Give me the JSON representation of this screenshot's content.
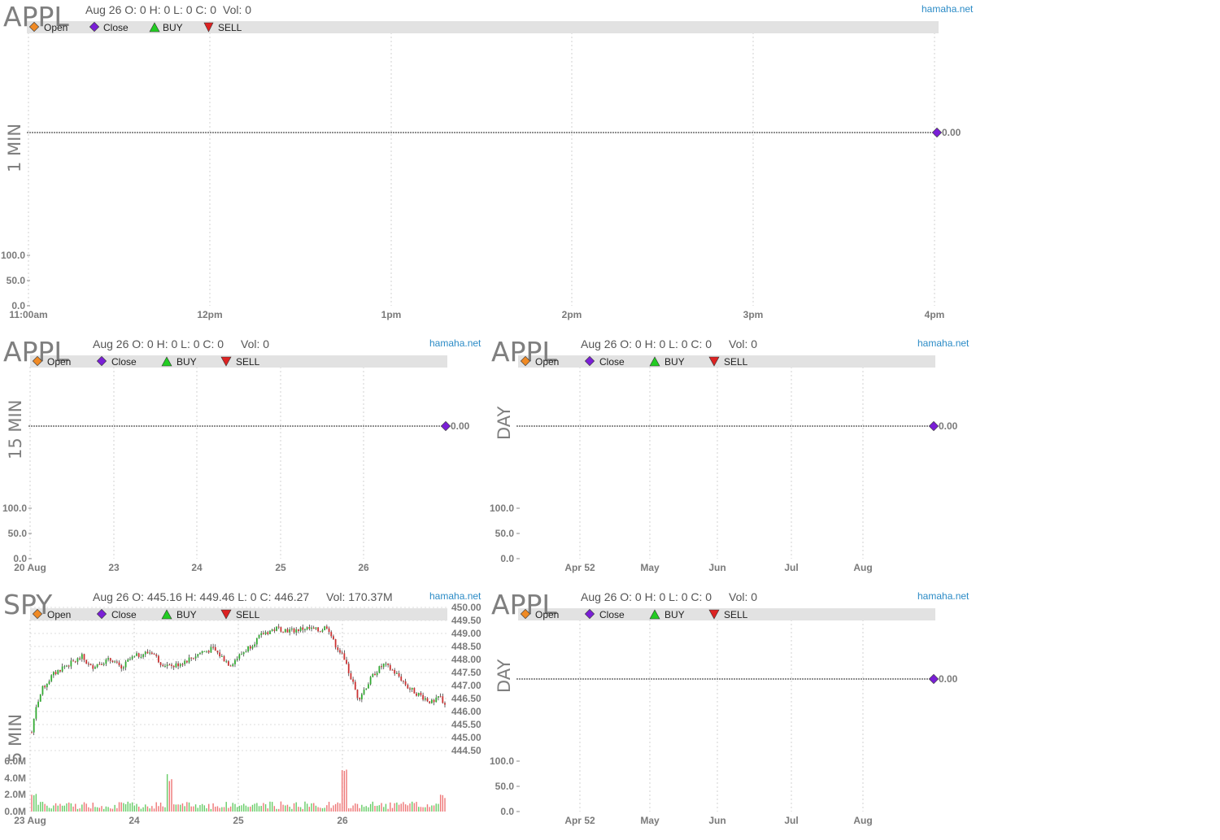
{
  "colors": {
    "open": "#f08a24",
    "close": "#7a1fd6",
    "buy": "#22cc22",
    "sell": "#dd2222",
    "up_candle": "#33aa33",
    "down_candle": "#cc3333",
    "brand": "#2b8bc6",
    "legend_band": "#e2e2e2",
    "grid": "#cccccc"
  },
  "legend": {
    "open": "Open",
    "close": "Close",
    "buy": "BUY",
    "sell": "SELL"
  },
  "panels": [
    {
      "id": "p1",
      "ticker": "APPL",
      "period": "1 MIN",
      "info": "Aug 26 O: 0 H: 0 L: 0 C: 0",
      "vol": "Vol: 0",
      "brand": "hamaha.net",
      "last_value": "0.00"
    },
    {
      "id": "p2",
      "ticker": "APPL",
      "period": "15 MIN",
      "info": "Aug 26 O: 0 H: 0 L: 0 C: 0",
      "vol": "Vol: 0",
      "brand": "hamaha.net",
      "last_value": "0.00"
    },
    {
      "id": "p3",
      "ticker": "APPL",
      "period": "DAY",
      "info": "Aug 26 O: 0 H: 0 L: 0 C: 0",
      "vol": "Vol: 0",
      "brand": "hamaha.net",
      "last_value": "0.00"
    },
    {
      "id": "p4",
      "ticker": "SPY",
      "period": "5 MIN",
      "info": "Aug 26 O: 445.16 H: 449.46 L: 0 C: 446.27",
      "vol": "Vol: 170.37M",
      "brand": "hamaha.net"
    },
    {
      "id": "p5",
      "ticker": "APPL",
      "period": "DAY",
      "info": "Aug 26 O: 0 H: 0 L: 0 C: 0",
      "vol": "Vol: 0",
      "brand": "hamaha.net",
      "last_value": "0.00"
    }
  ],
  "chart_data": [
    {
      "type": "line",
      "panel": "p1",
      "x_ticks": [
        "11:00am",
        "12pm",
        "1pm",
        "2pm",
        "3pm",
        "4pm"
      ],
      "y_ticks": [
        "100.0",
        "50.0",
        "0.0"
      ],
      "series": [
        {
          "values": [
            0.0
          ]
        }
      ],
      "grid": true,
      "legend": "top-left"
    },
    {
      "type": "line",
      "panel": "p2",
      "x_ticks": [
        "20 Aug",
        "23",
        "24",
        "25",
        "26"
      ],
      "y_ticks": [
        "100.0",
        "50.0",
        "0.0"
      ],
      "series": [
        {
          "values": [
            0.0
          ]
        }
      ],
      "grid": true,
      "legend": "top-left"
    },
    {
      "type": "line",
      "panel": "p3",
      "x_ticks": [
        "Apr 52",
        "May",
        "Jun",
        "Jul",
        "Aug"
      ],
      "y_ticks": [
        "100.0",
        "50.0",
        "0.0"
      ],
      "series": [
        {
          "values": [
            0.0
          ]
        }
      ],
      "grid": true,
      "legend": "top-left"
    },
    {
      "type": "candlestick",
      "panel": "p4",
      "x_ticks": [
        "23 Aug",
        "24",
        "25",
        "26"
      ],
      "y_ticks": [
        "450.00",
        "449.50",
        "449.00",
        "448.50",
        "448.00",
        "447.50",
        "447.00",
        "446.50",
        "446.00",
        "445.50",
        "445.00",
        "444.50"
      ],
      "ylim": [
        444.5,
        450.0
      ],
      "volume_ticks": [
        "6.0M",
        "4.0M",
        "2.0M",
        "0.0M"
      ],
      "volume_ylim": [
        0,
        6.0
      ],
      "close_path": [
        [
          0,
          445.2
        ],
        [
          3,
          446.2
        ],
        [
          8,
          446.9
        ],
        [
          15,
          447.4
        ],
        [
          22,
          447.7
        ],
        [
          30,
          447.9
        ],
        [
          36,
          448.1
        ],
        [
          42,
          447.7
        ],
        [
          50,
          447.9
        ],
        [
          58,
          448.0
        ],
        [
          64,
          447.6
        ],
        [
          70,
          448.0
        ],
        [
          78,
          448.2
        ],
        [
          86,
          448.3
        ],
        [
          92,
          447.9
        ],
        [
          100,
          447.7
        ],
        [
          108,
          447.9
        ],
        [
          116,
          448.1
        ],
        [
          122,
          448.3
        ],
        [
          130,
          448.4
        ],
        [
          136,
          448.1
        ],
        [
          142,
          447.8
        ],
        [
          150,
          448.2
        ],
        [
          156,
          448.5
        ],
        [
          166,
          449.0
        ],
        [
          176,
          449.2
        ],
        [
          186,
          449.1
        ],
        [
          196,
          449.2
        ],
        [
          206,
          449.1
        ],
        [
          212,
          449.3
        ],
        [
          216,
          448.7
        ],
        [
          222,
          448.2
        ],
        [
          228,
          447.4
        ],
        [
          234,
          446.5
        ],
        [
          240,
          447.0
        ],
        [
          246,
          447.5
        ],
        [
          252,
          447.8
        ],
        [
          258,
          447.6
        ],
        [
          264,
          447.3
        ],
        [
          270,
          446.9
        ],
        [
          276,
          446.7
        ],
        [
          282,
          446.5
        ],
        [
          288,
          446.3
        ],
        [
          292,
          446.6
        ],
        [
          296,
          446.3
        ]
      ],
      "grid": true,
      "legend": "top-left"
    },
    {
      "type": "line",
      "panel": "p5",
      "x_ticks": [
        "Apr 52",
        "May",
        "Jun",
        "Jul",
        "Aug"
      ],
      "y_ticks": [
        "100.0",
        "50.0",
        "0.0"
      ],
      "series": [
        {
          "values": [
            0.0
          ]
        }
      ],
      "grid": true,
      "legend": "top-left"
    }
  ]
}
